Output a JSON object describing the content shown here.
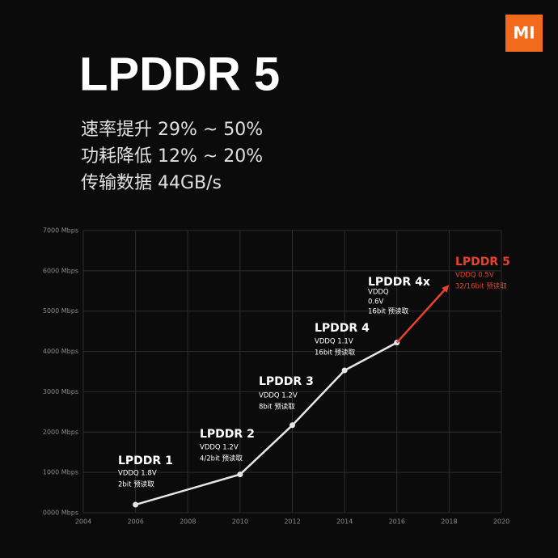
{
  "logo": "MI",
  "title": "LPDDR 5",
  "bullets": [
    "速率提升 29% ~ 50%",
    "功耗降低 12% ~ 20%",
    "传输数据 44GB/s"
  ],
  "chart_data": {
    "type": "line",
    "x": [
      2006,
      2010,
      2012,
      2014,
      2016
    ],
    "values": [
      200,
      950,
      2170,
      3530,
      4220
    ],
    "color": "#e6e6e6",
    "arrow": {
      "x": [
        2016,
        2018
      ],
      "values": [
        4220,
        5650
      ],
      "color": "#e8412c"
    },
    "xlim": [
      2004,
      2020
    ],
    "xticks": [
      2004,
      2006,
      2008,
      2010,
      2012,
      2014,
      2016,
      2018,
      2020
    ],
    "ylim": [
      0,
      7000
    ],
    "yticks": [
      {
        "value": 0,
        "label": "0000 Mbps"
      },
      {
        "value": 1000,
        "label": "1000 Mbps"
      },
      {
        "value": 2000,
        "label": "2000 Mbps"
      },
      {
        "value": 3000,
        "label": "3000 Mbps"
      },
      {
        "value": 4000,
        "label": "4000 Mbps"
      },
      {
        "value": 5000,
        "label": "5000 Mbps"
      },
      {
        "value": 6000,
        "label": "6000 Mbps"
      },
      {
        "value": 7000,
        "label": "7000 Mbps"
      }
    ],
    "grid": true,
    "annotations": [
      {
        "title": "LPDDR 1",
        "lines": [
          "VDDQ 1.8V",
          "2bit 预读取"
        ],
        "color": "#ffffff"
      },
      {
        "title": "LPDDR 2",
        "lines": [
          "VDDQ 1.2V",
          "4/2bit 预读取"
        ],
        "color": "#ffffff"
      },
      {
        "title": "LPDDR 3",
        "lines": [
          "VDDQ 1.2V",
          "8bit 预读取"
        ],
        "color": "#ffffff"
      },
      {
        "title": "LPDDR 4",
        "lines": [
          "VDDQ 1.1V",
          "16bit 预读取"
        ],
        "color": "#ffffff"
      },
      {
        "title": "LPDDR 4x",
        "lines": [
          "VDDQ",
          "0.6V",
          "16bit 预读取"
        ],
        "color": "#ffffff"
      },
      {
        "title": "LPDDR 5",
        "lines": [
          "VDDQ 0.5V",
          "32/16bit 预读取"
        ],
        "color": "#e8412c"
      }
    ]
  }
}
